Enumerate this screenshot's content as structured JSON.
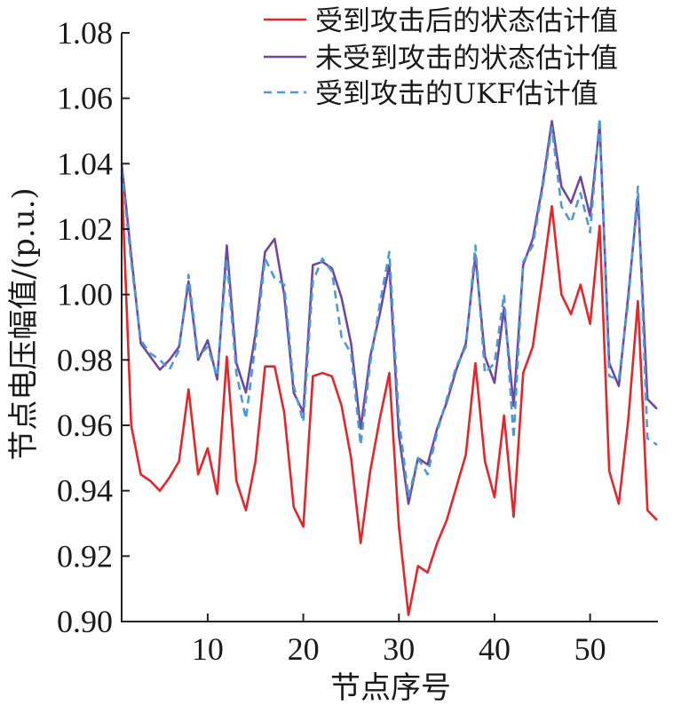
{
  "chart_data": {
    "type": "line",
    "xlabel": "节点序号",
    "ylabel": "节点电压幅值/(p.u.)",
    "xlim": [
      1,
      57
    ],
    "ylim": [
      0.9,
      1.08
    ],
    "xticks": [
      10,
      20,
      30,
      40,
      50
    ],
    "yticks": [
      "0.90",
      "0.92",
      "0.94",
      "0.96",
      "0.98",
      "1.00",
      "1.02",
      "1.04",
      "1.06",
      "1.08"
    ],
    "grid": false,
    "legend": "top-right",
    "x": [
      1,
      2,
      3,
      4,
      5,
      6,
      7,
      8,
      9,
      10,
      11,
      12,
      13,
      14,
      15,
      16,
      17,
      18,
      19,
      20,
      21,
      22,
      23,
      24,
      25,
      26,
      27,
      28,
      29,
      30,
      31,
      32,
      33,
      34,
      35,
      36,
      37,
      38,
      39,
      40,
      41,
      42,
      43,
      44,
      45,
      46,
      47,
      48,
      49,
      50,
      51,
      52,
      53,
      54,
      55,
      56,
      57
    ],
    "series": [
      {
        "name": "受到攻击后的状态估计值",
        "color": "#e3262b",
        "dashed": false,
        "values": [
          1.036,
          0.96,
          0.945,
          0.943,
          0.94,
          0.944,
          0.949,
          0.971,
          0.945,
          0.953,
          0.939,
          0.981,
          0.943,
          0.934,
          0.949,
          0.978,
          0.978,
          0.964,
          0.935,
          0.929,
          0.975,
          0.976,
          0.975,
          0.966,
          0.95,
          0.924,
          0.946,
          0.962,
          0.976,
          0.929,
          0.902,
          0.917,
          0.915,
          0.924,
          0.931,
          0.941,
          0.951,
          0.979,
          0.949,
          0.938,
          0.963,
          0.932,
          0.976,
          0.984,
          1.005,
          1.027,
          1.0,
          0.994,
          1.003,
          0.991,
          1.021,
          0.946,
          0.936,
          0.962,
          0.998,
          0.934,
          0.931
        ]
      },
      {
        "name": "未受到攻击的状态估计值",
        "color": "#7046a3",
        "dashed": false,
        "values": [
          1.04,
          1.012,
          0.985,
          0.981,
          0.977,
          0.98,
          0.984,
          1.004,
          0.98,
          0.986,
          0.974,
          1.015,
          0.979,
          0.97,
          0.988,
          1.013,
          1.017,
          1.0,
          0.97,
          0.964,
          1.009,
          1.01,
          1.008,
          0.999,
          0.985,
          0.959,
          0.981,
          0.994,
          1.009,
          0.957,
          0.936,
          0.95,
          0.948,
          0.959,
          0.967,
          0.977,
          0.985,
          1.012,
          0.981,
          0.973,
          0.996,
          0.966,
          1.009,
          1.017,
          1.033,
          1.053,
          1.033,
          1.028,
          1.036,
          1.024,
          1.052,
          0.979,
          0.972,
          1.0,
          1.03,
          0.968,
          0.965
        ]
      },
      {
        "name": "受到攻击的UKF估计值",
        "color": "#4b9ad6",
        "dashed": true,
        "values": [
          1.038,
          1.01,
          0.986,
          0.982,
          0.98,
          0.977,
          0.983,
          1.006,
          0.981,
          0.984,
          0.975,
          1.011,
          0.976,
          0.962,
          0.985,
          1.011,
          1.005,
          1.003,
          0.972,
          0.961,
          1.004,
          1.011,
          1.007,
          0.987,
          0.982,
          0.954,
          0.979,
          0.997,
          1.013,
          0.962,
          0.938,
          0.95,
          0.945,
          0.958,
          0.968,
          0.978,
          0.984,
          1.015,
          0.976,
          0.979,
          1.0,
          0.956,
          1.01,
          1.015,
          1.032,
          1.051,
          1.027,
          1.022,
          1.031,
          1.019,
          1.054,
          0.975,
          0.974,
          0.998,
          1.033,
          0.956,
          0.954
        ]
      }
    ]
  }
}
